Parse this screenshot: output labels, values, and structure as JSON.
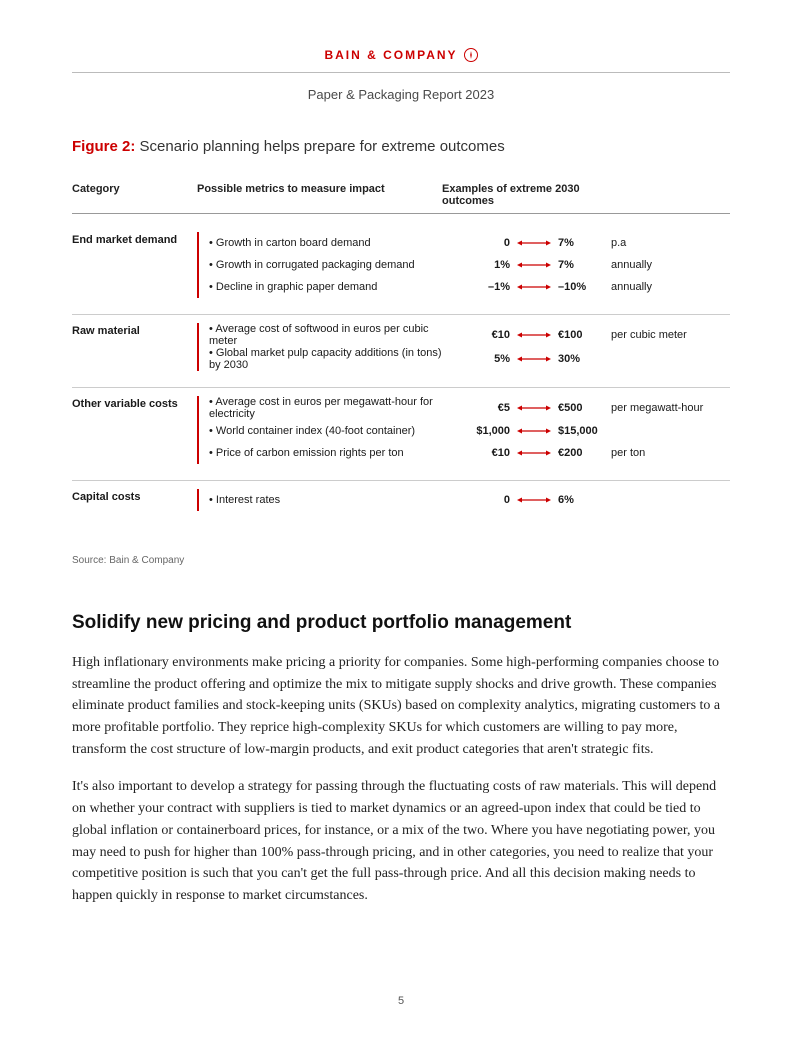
{
  "brand": "BAIN & COMPANY",
  "report_title": "Paper & Packaging Report 2023",
  "figure": {
    "label": "Figure 2:",
    "caption": "Scenario planning helps prepare for extreme outcomes"
  },
  "colors": {
    "accent": "#cc0000",
    "text": "#1a1a1a",
    "rule": "#bbbbbb"
  },
  "table": {
    "headers": {
      "category": "Category",
      "metrics": "Possible metrics to measure impact",
      "outcomes": "Examples of extreme 2030 outcomes"
    },
    "sections": [
      {
        "category": "End market demand",
        "rows": [
          {
            "metric": "Growth in carton board demand",
            "low": "0",
            "high": "7%",
            "suffix": "p.a"
          },
          {
            "metric": "Growth in corrugated packaging demand",
            "low": "1%",
            "high": "7%",
            "suffix": "annually"
          },
          {
            "metric": "Decline in graphic paper demand",
            "low": "–1%",
            "high": "–10%",
            "suffix": "annually"
          }
        ]
      },
      {
        "category": "Raw material",
        "rows": [
          {
            "metric": "Average cost of softwood in euros per cubic meter",
            "low": "€10",
            "high": "€100",
            "suffix": "per cubic meter"
          },
          {
            "metric": "Global market pulp capacity additions (in tons) by 2030",
            "low": "5%",
            "high": "30%",
            "suffix": ""
          }
        ]
      },
      {
        "category": "Other variable costs",
        "rows": [
          {
            "metric": "Average cost in euros per megawatt-hour for electricity",
            "low": "€5",
            "high": "€500",
            "suffix": "per megawatt-hour"
          },
          {
            "metric": "World container index (40-foot container)",
            "low": "$1,000",
            "high": "$15,000",
            "suffix": ""
          },
          {
            "metric": "Price of carbon emission rights per ton",
            "low": "€10",
            "high": "€200",
            "suffix": "per ton"
          }
        ]
      },
      {
        "category": "Capital costs",
        "rows": [
          {
            "metric": "Interest rates",
            "low": "0",
            "high": "6%",
            "suffix": ""
          }
        ]
      }
    ]
  },
  "source": "Source: Bain & Company",
  "heading": "Solidify new pricing and product portfolio management",
  "paragraphs": [
    "High inflationary environments make pricing a priority for companies. Some high-performing companies choose to streamline the product offering and optimize the mix to mitigate supply shocks and drive growth. These companies eliminate product families and stock-keeping units (SKUs) based on complexity analytics, migrating customers to a more profitable portfolio. They reprice high-complexity SKUs for which customers are willing to pay more, transform the cost structure of low-margin products, and exit product categories that aren't strategic fits.",
    "It's also important to develop a strategy for passing through the fluctuating costs of raw materials. This will depend on whether your contract with suppliers is tied to market dynamics or an agreed-upon index that could be tied to global inflation or containerboard prices, for instance, or a mix of the two. Where you have negotiating power, you may need to push for higher than 100% pass-through pricing, and in other categories, you need to realize that your competitive position is such that you can't get the full pass-through price. And all this decision making needs to happen quickly in response to market circumstances."
  ],
  "page_number": "5"
}
